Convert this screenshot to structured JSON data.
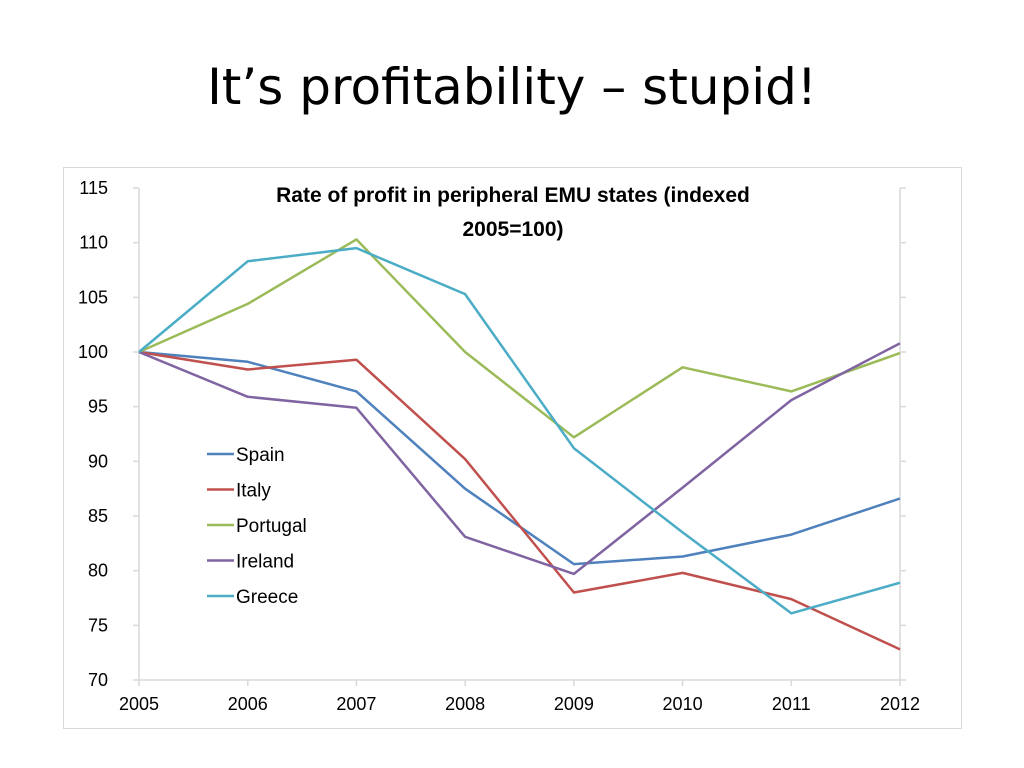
{
  "slide": {
    "title": "It’s profitability – stupid!"
  },
  "chart_data": {
    "type": "line",
    "title_lines": [
      "Rate of profit in peripheral EMU states (indexed",
      "2005=100)"
    ],
    "x": [
      "2005",
      "2006",
      "2007",
      "2008",
      "2009",
      "2010",
      "2011",
      "2012"
    ],
    "ylim": [
      70,
      115
    ],
    "yticks": [
      70,
      75,
      80,
      85,
      90,
      95,
      100,
      105,
      110,
      115
    ],
    "grid": false,
    "legend_position": "left-center",
    "series": [
      {
        "name": "Spain",
        "color": "#4F81BD",
        "values": [
          100,
          99.1,
          96.4,
          87.5,
          80.6,
          81.3,
          83.3,
          86.6
        ]
      },
      {
        "name": "Italy",
        "color": "#C0504D",
        "values": [
          100,
          98.4,
          99.3,
          90.2,
          78.0,
          79.8,
          77.4,
          72.8
        ]
      },
      {
        "name": "Portugal",
        "color": "#9BBB59",
        "values": [
          100,
          104.4,
          110.3,
          100.0,
          92.2,
          98.6,
          96.4,
          99.9
        ]
      },
      {
        "name": "Ireland",
        "color": "#8064A2",
        "values": [
          100,
          95.9,
          94.9,
          83.1,
          79.7,
          87.6,
          95.6,
          100.8
        ]
      },
      {
        "name": "Greece",
        "color": "#4BACC6",
        "values": [
          100,
          108.3,
          109.5,
          105.3,
          91.2,
          83.5,
          76.1,
          78.9
        ]
      }
    ]
  }
}
